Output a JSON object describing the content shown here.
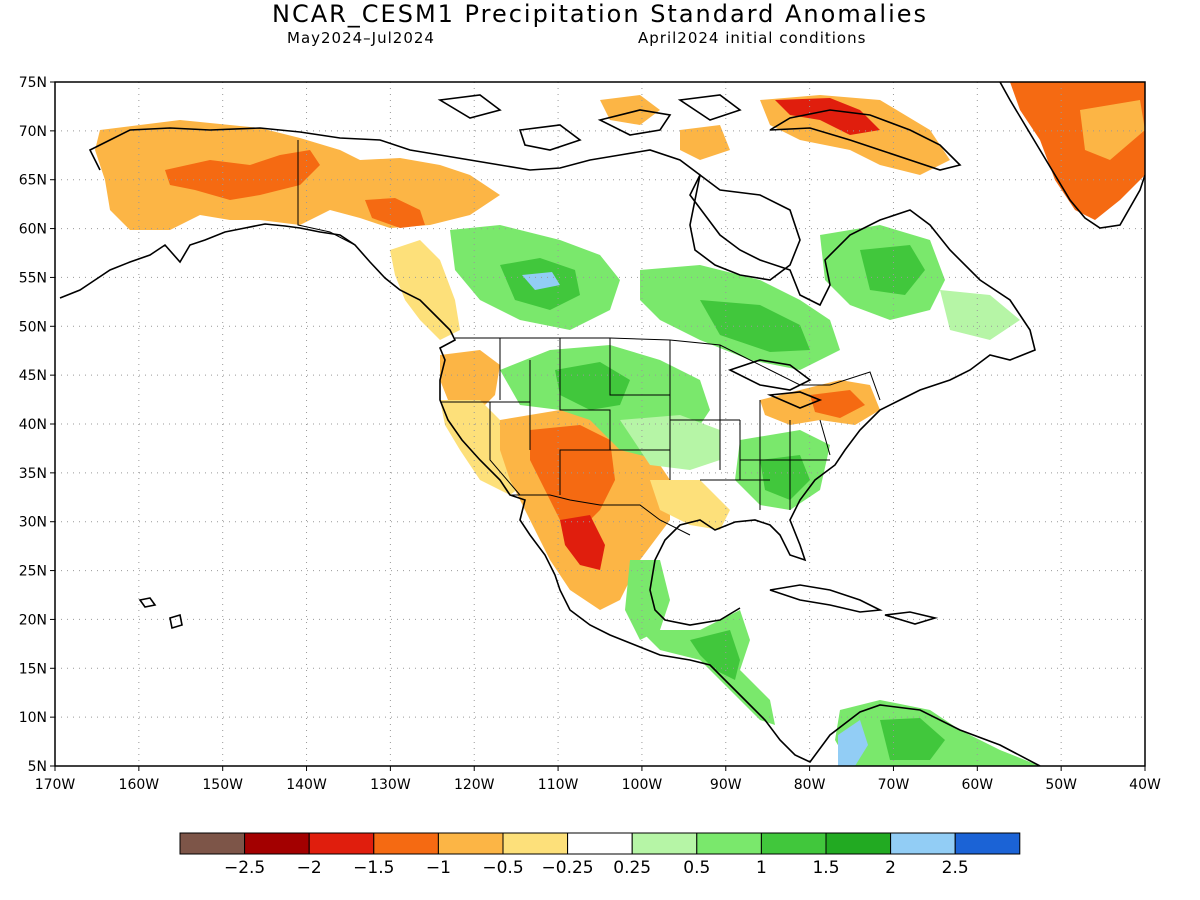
{
  "header": {
    "title": "NCAR_CESM1 Precipitation Standard Anomalies",
    "period": "May2024–Jul2024",
    "init": "April2024 initial conditions"
  },
  "map": {
    "lat_labels": [
      "75N",
      "70N",
      "65N",
      "60N",
      "55N",
      "50N",
      "45N",
      "40N",
      "35N",
      "30N",
      "25N",
      "20N",
      "15N",
      "10N",
      "5N"
    ],
    "lon_labels": [
      "170W",
      "160W",
      "150W",
      "140W",
      "130W",
      "120W",
      "110W",
      "100W",
      "90W",
      "80W",
      "70W",
      "60W",
      "50W",
      "40W"
    ],
    "lat_range": [
      5,
      75
    ],
    "lon_range": [
      -170,
      -40
    ],
    "grid": "dotted"
  },
  "colorbar": {
    "colors": [
      "#7d5548",
      "#a30000",
      "#e01e0d",
      "#f56a12",
      "#fcb545",
      "#fde07a",
      "#ffffff",
      "#b6f5a6",
      "#7ae86c",
      "#41c73c",
      "#22aa22",
      "#92cdf5",
      "#1b63d6"
    ],
    "labels": [
      "−2.5",
      "−2",
      "−1.5",
      "−1",
      "−0.5",
      "−0.25",
      "0.25",
      "0.5",
      "1",
      "1.5",
      "2",
      "2.5"
    ]
  },
  "anomaly_colors": {
    "dry_light": "#fde07a",
    "dry_mod": "#fcb545",
    "dry_strong": "#f56a12",
    "dry_severe": "#e01e0d",
    "dry_extreme": "#a30000",
    "wet_light": "#b6f5a6",
    "wet_mod": "#7ae86c",
    "wet_strong": "#41c73c",
    "wet_severe": "#22aa22",
    "wet_extreme": "#92cdf5"
  }
}
